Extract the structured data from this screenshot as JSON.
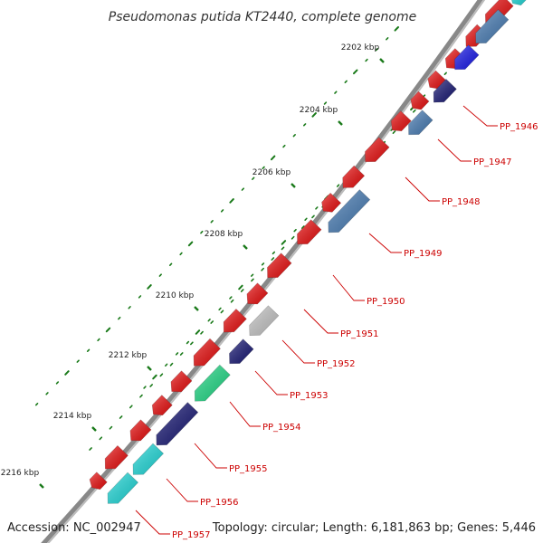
{
  "title": "Pseudomonas putida KT2440, complete genome",
  "footer": {
    "accession": "Accession: NC_002947",
    "topology": "Topology: circular; Length: 6,181,863 bp; Genes: 5,446"
  },
  "scale": {
    "unit": "kbp",
    "labels": [
      "2202 kbp",
      "2204 kbp",
      "2206 kbp",
      "2208 kbp",
      "2210 kbp",
      "2212 kbp",
      "2214 kbp",
      "2216 kbp"
    ]
  },
  "colors": {
    "forward_strand": "#ee1111",
    "backbone": "#888888",
    "tick": "#1a7a1a",
    "label": "#cc0000",
    "steelblue": "#4a7fb8",
    "blue": "#1a1aee",
    "navy": "#1a1a77",
    "silver": "#c8c8c8",
    "green": "#22dd88",
    "cyan": "#22dddd"
  },
  "genes": [
    {
      "name": "PP_1946",
      "color": "navy"
    },
    {
      "name": "PP_1947",
      "color": "steelblue"
    },
    {
      "name": "PP_1948",
      "color": "none"
    },
    {
      "name": "PP_1949",
      "color": "steelblue"
    },
    {
      "name": "PP_1950",
      "color": "none"
    },
    {
      "name": "PP_1951",
      "color": "none"
    },
    {
      "name": "PP_1952",
      "color": "silver"
    },
    {
      "name": "PP_1953",
      "color": "navy"
    },
    {
      "name": "PP_1954",
      "color": "green"
    },
    {
      "name": "PP_1955",
      "color": "navy"
    },
    {
      "name": "PP_1956",
      "color": "cyan"
    },
    {
      "name": "PP_1957",
      "color": "cyan"
    }
  ]
}
